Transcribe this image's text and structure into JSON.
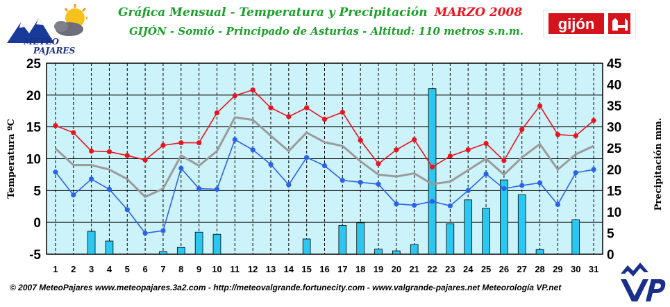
{
  "logo_left": {
    "line1": "METEO",
    "line2": "PAJARES"
  },
  "header": {
    "title": "Gráfica Mensual - Temperatura y Precipitación",
    "month": "MARZO 2008",
    "subtitle": "GIJÓN - Somió - Principado de Asturias - Altitud: 110 metros s.n.m."
  },
  "logo_right": {
    "text": "gijón"
  },
  "footer": {
    "text": "© 2007 MeteoPajares www.meteopajares.3a2.com - http://meteovalgrande.fortunecity.com - www.valgrande-pajares.net Meteorología VP.net"
  },
  "colors": {
    "plot_bg": "#ccf2fa",
    "max_line": "#e8141e",
    "min_line": "#2a62e8",
    "avg_line": "#9a9a9a",
    "bars": "#2ac8f0",
    "title": "#1ba02a",
    "accent": "#e8141e"
  },
  "chart_data": {
    "type": "bar+line",
    "x": [
      1,
      2,
      3,
      4,
      5,
      6,
      7,
      8,
      9,
      10,
      11,
      12,
      13,
      14,
      15,
      16,
      17,
      18,
      19,
      20,
      21,
      22,
      23,
      24,
      25,
      26,
      27,
      28,
      29,
      30,
      31
    ],
    "ylabel_left": "Temperatura ºC",
    "ylabel_right": "Precipitación mm.",
    "ylim_left": [
      -5,
      25
    ],
    "yticks_left": [
      -5,
      0,
      5,
      10,
      15,
      20,
      25
    ],
    "ylim_right": [
      0,
      45
    ],
    "yticks_right": [
      0,
      5,
      10,
      15,
      20,
      25,
      30,
      35,
      40,
      45
    ],
    "grid": true,
    "series": [
      {
        "kind": "line",
        "axis": "left",
        "color": "#e8141e",
        "markers": true,
        "values": [
          15.2,
          14.1,
          11.2,
          11.1,
          10.5,
          9.8,
          12.1,
          12.5,
          12.5,
          17.2,
          19.9,
          20.8,
          18.0,
          16.6,
          18.0,
          16.2,
          17.3,
          12.9,
          9.2,
          11.4,
          13.0,
          8.7,
          10.4,
          11.4,
          12.4,
          9.7,
          14.6,
          18.3,
          13.8,
          13.6,
          16.0
        ]
      },
      {
        "kind": "line",
        "axis": "left",
        "color": "#2a62e8",
        "markers": true,
        "values": [
          7.9,
          4.3,
          6.8,
          5.2,
          2.0,
          -1.7,
          -1.3,
          8.5,
          5.3,
          5.2,
          13.0,
          11.4,
          9.1,
          5.9,
          10.2,
          8.9,
          6.6,
          6.3,
          6.0,
          2.9,
          2.7,
          3.3,
          2.6,
          5.0,
          7.6,
          5.3,
          5.8,
          6.2,
          2.8,
          7.8,
          8.3
        ]
      },
      {
        "kind": "line",
        "axis": "left",
        "color": "#9a9a9a",
        "markers": false,
        "values": [
          11.6,
          9.0,
          9.0,
          8.3,
          6.8,
          4.0,
          5.3,
          10.5,
          8.9,
          11.2,
          16.5,
          16.1,
          13.6,
          11.2,
          14.1,
          12.6,
          12.0,
          9.6,
          7.5,
          7.2,
          7.7,
          6.0,
          6.4,
          8.2,
          10.0,
          7.5,
          10.2,
          12.3,
          8.3,
          10.7,
          12.0
        ]
      },
      {
        "kind": "bar",
        "axis": "right",
        "color": "#2ac8f0",
        "values": [
          0,
          0,
          5.4,
          3.1,
          0,
          0,
          0.6,
          1.6,
          5.2,
          4.7,
          0,
          0,
          0,
          0,
          3.6,
          0,
          6.8,
          7.4,
          1.2,
          0.8,
          2.3,
          39.0,
          7.2,
          12.8,
          10.8,
          17.5,
          14.0,
          1.1,
          0,
          8.1,
          0
        ]
      }
    ]
  }
}
